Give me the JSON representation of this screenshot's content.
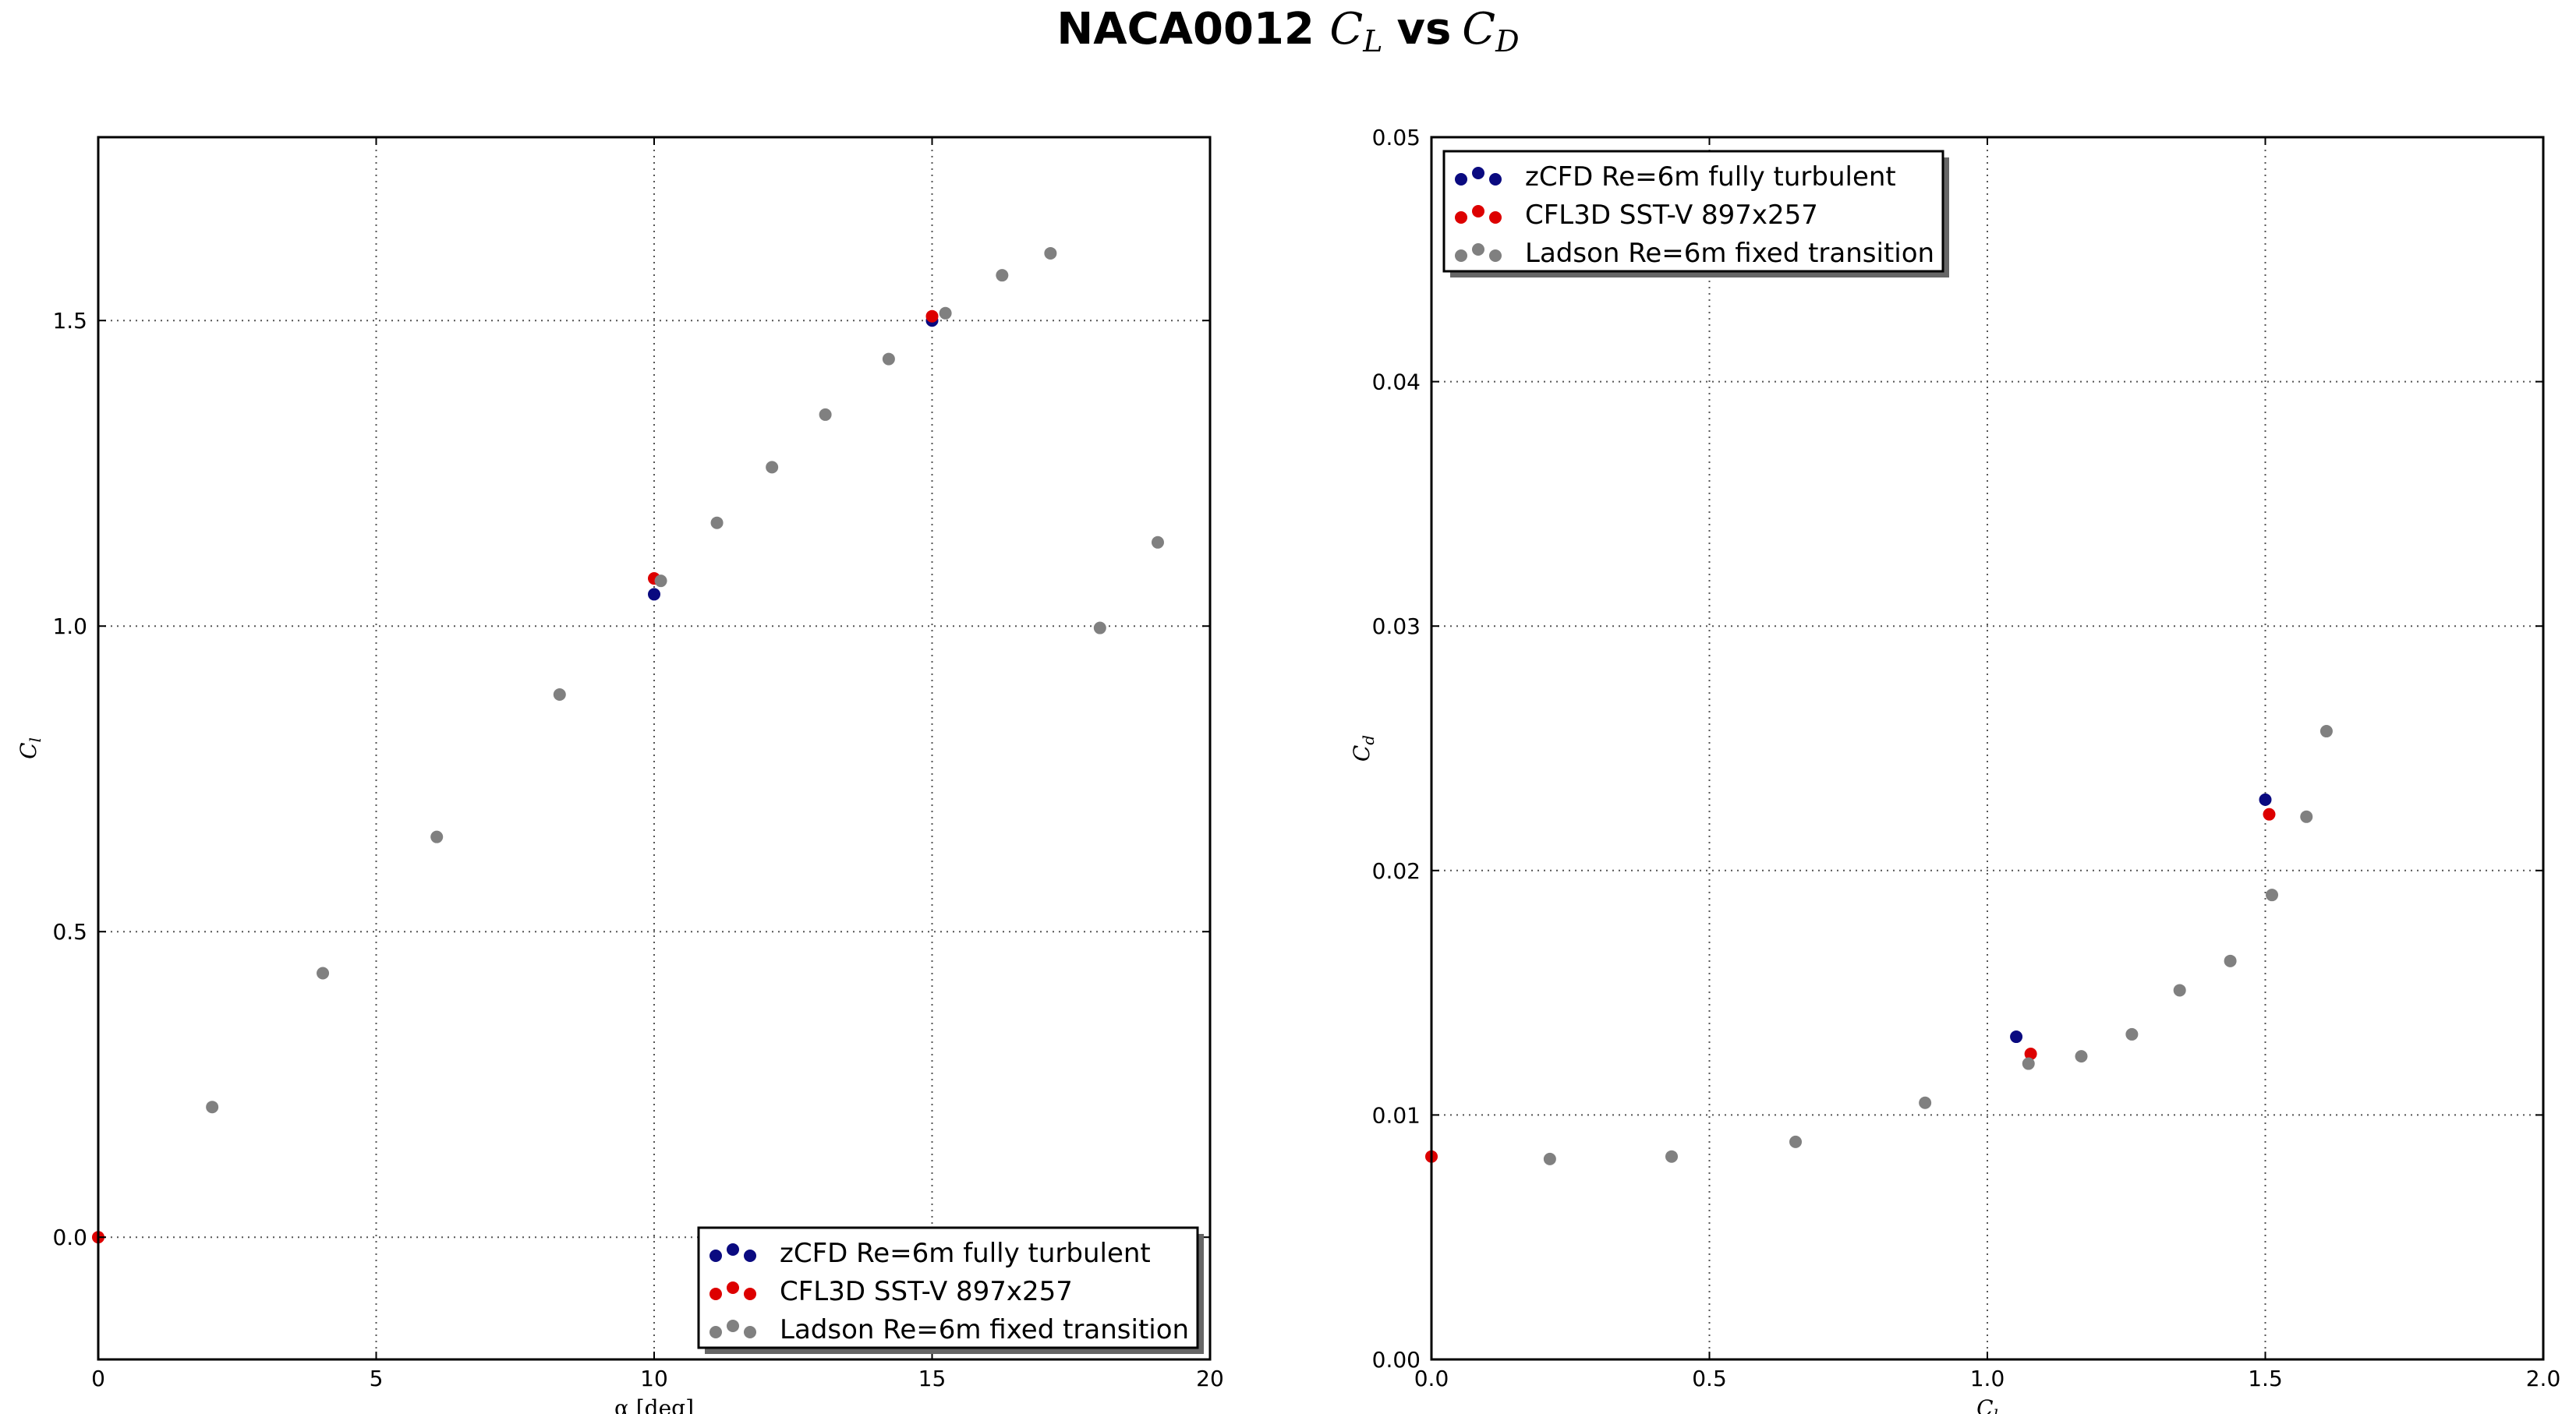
{
  "figure_title": {
    "prefix": "NACA0012 ",
    "cl_main": "C",
    "cl_sub": "L",
    "vs": "vs",
    "cd_main": "C",
    "cd_sub": "D"
  },
  "chart_data": [
    {
      "type": "scatter",
      "title": "",
      "xlabel": "α [deg]",
      "ylabel_main": "C",
      "ylabel_sub": "l",
      "xlim": [
        0,
        20
      ],
      "ylim": [
        -0.2,
        1.8
      ],
      "xticks": [
        0,
        5,
        10,
        15,
        20
      ],
      "xtick_labels": [
        "0",
        "5",
        "10",
        "15",
        "20"
      ],
      "yticks": [
        0.0,
        0.5,
        1.0,
        1.5
      ],
      "ytick_labels": [
        "0.0",
        "0.5",
        "1.0",
        "1.5"
      ],
      "grid": true,
      "legend_position": "lower-right",
      "series": [
        {
          "name": "zCFD Re=6m fully turbulent",
          "color": "#0a0a80",
          "x": [
            10,
            15
          ],
          "y": [
            1.052,
            1.5
          ]
        },
        {
          "name": "CFL3D SST-V 897x257",
          "color": "#dd0000",
          "x": [
            0,
            10,
            15
          ],
          "y": [
            0.0,
            1.078,
            1.507
          ]
        },
        {
          "name": "Ladson Re=6m fixed transition",
          "color": "#808080",
          "x": [
            2.05,
            4.04,
            6.09,
            8.3,
            10.12,
            11.13,
            12.12,
            13.08,
            14.22,
            15.24,
            16.26,
            17.13,
            18.02,
            19.06
          ],
          "y": [
            0.213,
            0.432,
            0.655,
            0.888,
            1.074,
            1.169,
            1.26,
            1.346,
            1.437,
            1.512,
            1.574,
            1.61,
            0.997,
            1.137
          ]
        }
      ]
    },
    {
      "type": "scatter",
      "title": "",
      "xlabel_main": "C",
      "xlabel_sub": "l",
      "ylabel_main": "C",
      "ylabel_sub": "d",
      "xlim": [
        0,
        2.0
      ],
      "ylim": [
        0.0,
        0.05
      ],
      "xticks": [
        0,
        0.5,
        1.0,
        1.5,
        2.0
      ],
      "xtick_labels": [
        "0.0",
        "0.5",
        "1.0",
        "1.5",
        "2.0"
      ],
      "yticks": [
        0.0,
        0.01,
        0.02,
        0.03,
        0.04,
        0.05
      ],
      "ytick_labels": [
        "0.00",
        "0.01",
        "0.02",
        "0.03",
        "0.04",
        "0.05"
      ],
      "grid": true,
      "legend_position": "upper-left",
      "series": [
        {
          "name": "zCFD Re=6m fully turbulent",
          "color": "#0a0a80",
          "x": [
            1.052,
            1.5
          ],
          "y": [
            0.0132,
            0.0229
          ]
        },
        {
          "name": "CFL3D SST-V 897x257",
          "color": "#dd0000",
          "x": [
            0.0,
            1.078,
            1.507
          ],
          "y": [
            0.0083,
            0.0125,
            0.0223
          ]
        },
        {
          "name": "Ladson Re=6m fixed transition",
          "color": "#808080",
          "x": [
            0.213,
            0.432,
            0.655,
            0.888,
            1.074,
            1.169,
            1.26,
            1.346,
            1.437,
            1.512,
            1.574,
            1.61
          ],
          "y": [
            0.0082,
            0.0083,
            0.0089,
            0.0105,
            0.0121,
            0.0124,
            0.0133,
            0.0151,
            0.0163,
            0.019,
            0.0222,
            0.0257
          ]
        }
      ]
    }
  ]
}
